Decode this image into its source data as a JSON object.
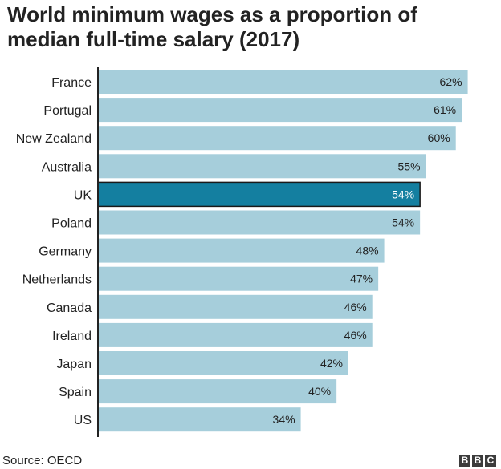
{
  "title": "World minimum wages as a proportion of median full-time salary (2017)",
  "footer": {
    "source": "Source: OECD",
    "logo": [
      "B",
      "B",
      "C"
    ]
  },
  "colors": {
    "bar": "#a6cedb",
    "highlight": "#147fa0",
    "axis": "#222222",
    "text": "#222222"
  },
  "chart_data": {
    "type": "bar",
    "orientation": "horizontal",
    "categories": [
      "France",
      "Portugal",
      "New Zealand",
      "Australia",
      "UK",
      "Poland",
      "Germany",
      "Netherlands",
      "Canada",
      "Ireland",
      "Japan",
      "Spain",
      "US"
    ],
    "values": [
      62,
      61,
      60,
      55,
      54,
      54,
      48,
      47,
      46,
      46,
      42,
      40,
      34
    ],
    "value_labels": [
      "62%",
      "61%",
      "60%",
      "55%",
      "54%",
      "54%",
      "48%",
      "47%",
      "46%",
      "46%",
      "42%",
      "40%",
      "34%"
    ],
    "highlight": "UK",
    "unit": "%",
    "xlim": [
      0,
      63
    ],
    "grid": false,
    "legend": "none"
  }
}
